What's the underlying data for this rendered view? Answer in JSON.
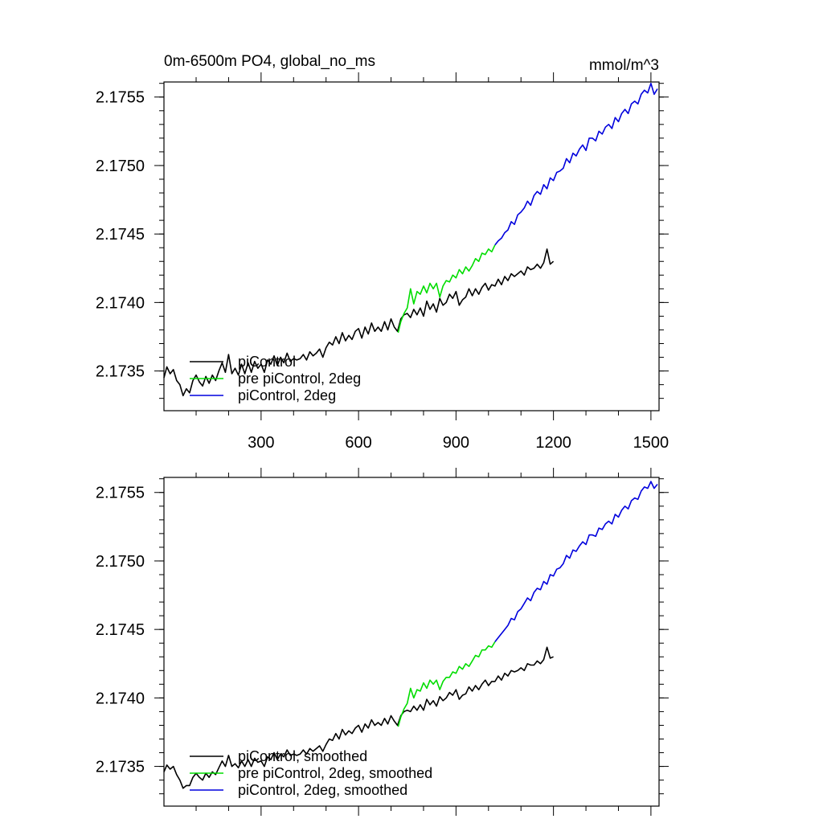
{
  "chart_data": [
    {
      "type": "line",
      "title": "0m-6500m PO4, global_no_ms",
      "units": "mmol/m^3",
      "xlabel": "",
      "ylabel": "",
      "xlim": [
        1,
        1525
      ],
      "ylim": [
        2.17321,
        2.17561
      ],
      "xticks": [
        300,
        600,
        900,
        1200,
        1500
      ],
      "yticks": [
        2.1735,
        2.174,
        2.1745,
        2.175,
        2.1755
      ],
      "xtick_labels": [
        "300",
        "600",
        "900",
        "1200",
        "1500"
      ],
      "ytick_labels": [
        "2.1735",
        "2.1740",
        "2.1745",
        "2.1750",
        "2.1755"
      ],
      "legend_position": "bottom-left",
      "series": [
        {
          "name": "piControl",
          "color": "#000000",
          "x": [
            1,
            10,
            20,
            30,
            40,
            50,
            60,
            70,
            80,
            90,
            100,
            110,
            120,
            130,
            140,
            150,
            160,
            170,
            180,
            190,
            200,
            210,
            220,
            230,
            240,
            250,
            260,
            270,
            280,
            290,
            300,
            310,
            320,
            330,
            340,
            350,
            360,
            370,
            380,
            390,
            400,
            410,
            420,
            430,
            440,
            450,
            460,
            470,
            480,
            490,
            500,
            510,
            520,
            530,
            540,
            550,
            560,
            570,
            580,
            590,
            600,
            610,
            620,
            630,
            640,
            650,
            660,
            670,
            680,
            690,
            700,
            710,
            720,
            730,
            740,
            750,
            760,
            770,
            780,
            790,
            800,
            810,
            820,
            830,
            840,
            850,
            860,
            870,
            880,
            890,
            900,
            910,
            920,
            930,
            940,
            950,
            960,
            970,
            980,
            990,
            1000,
            1010,
            1020,
            1030,
            1040,
            1050,
            1060,
            1070,
            1080,
            1090,
            1100,
            1110,
            1120,
            1130,
            1140,
            1150,
            1160,
            1170,
            1180,
            1190,
            1200
          ],
          "y": [
            2.17345,
            2.17353,
            2.17348,
            2.17351,
            2.17343,
            2.1734,
            2.17332,
            2.17337,
            2.17334,
            2.17343,
            2.17347,
            2.17342,
            2.17339,
            2.17346,
            2.17341,
            2.17347,
            2.17343,
            2.1735,
            2.17356,
            2.17349,
            2.17362,
            2.17348,
            2.17352,
            2.17347,
            2.17355,
            2.17348,
            2.17356,
            2.17349,
            2.17357,
            2.17352,
            2.17355,
            2.17349,
            2.17358,
            2.17355,
            2.17361,
            2.17354,
            2.1736,
            2.17356,
            2.17363,
            2.17357,
            2.17359,
            2.17358,
            2.17359,
            2.17362,
            2.17358,
            2.17364,
            2.17361,
            2.17363,
            2.17366,
            2.1736,
            2.17367,
            2.17371,
            2.17369,
            2.17375,
            2.1737,
            2.17378,
            2.17372,
            2.17376,
            2.17373,
            2.17379,
            2.17381,
            2.17374,
            2.17382,
            2.17377,
            2.17385,
            2.17379,
            2.17382,
            2.17379,
            2.17386,
            2.1738,
            2.17388,
            2.17382,
            2.17379,
            2.17388,
            2.17391,
            2.17392,
            2.17389,
            2.17395,
            2.17391,
            2.17396,
            2.1739,
            2.17401,
            2.17395,
            2.17399,
            2.17393,
            2.17403,
            2.17398,
            2.174,
            2.17406,
            2.17403,
            2.17408,
            2.17398,
            2.17402,
            2.17404,
            2.1741,
            2.17405,
            2.1741,
            2.17406,
            2.17411,
            2.17414,
            2.17409,
            2.17413,
            2.17412,
            2.17417,
            2.17413,
            2.17419,
            2.17416,
            2.17421,
            2.17419,
            2.17421,
            2.17423,
            2.1742,
            2.17426,
            2.17424,
            2.17425,
            2.17428,
            2.17425,
            2.17429,
            2.17439,
            2.17428,
            2.1743
          ]
        },
        {
          "name": "pre piControl, 2deg",
          "color": "#00dd00",
          "x": [
            722,
            730,
            740,
            750,
            760,
            770,
            780,
            790,
            800,
            810,
            820,
            830,
            840,
            850,
            860,
            870,
            880,
            890,
            900,
            910,
            920,
            930,
            940,
            950,
            960,
            970,
            980,
            990,
            1000,
            1010,
            1020
          ],
          "y": [
            2.17378,
            2.17386,
            2.17392,
            2.17396,
            2.1741,
            2.17399,
            2.17408,
            2.17406,
            2.17412,
            2.17407,
            2.17414,
            2.1741,
            2.17414,
            2.17404,
            2.17412,
            2.17416,
            2.17415,
            2.1742,
            2.17418,
            2.17424,
            2.17421,
            2.17426,
            2.17423,
            2.17427,
            2.17432,
            2.1743,
            2.17436,
            2.17435,
            2.17439,
            2.17437,
            2.17442
          ]
        },
        {
          "name": "piControl, 2deg",
          "color": "#0000dd",
          "x": [
            1020,
            1030,
            1040,
            1050,
            1060,
            1070,
            1080,
            1090,
            1100,
            1110,
            1120,
            1130,
            1140,
            1150,
            1160,
            1170,
            1180,
            1190,
            1200,
            1210,
            1220,
            1230,
            1240,
            1250,
            1260,
            1270,
            1280,
            1290,
            1300,
            1310,
            1320,
            1330,
            1340,
            1350,
            1360,
            1370,
            1380,
            1390,
            1400,
            1410,
            1420,
            1430,
            1440,
            1450,
            1460,
            1470,
            1480,
            1490,
            1500,
            1510,
            1520
          ],
          "y": [
            2.17442,
            2.17445,
            2.17447,
            2.17451,
            2.17453,
            2.17459,
            2.17457,
            2.17464,
            2.17466,
            2.17469,
            2.17474,
            2.17471,
            2.17478,
            2.17481,
            2.17479,
            2.17486,
            2.17483,
            2.17491,
            2.17489,
            2.17495,
            2.17496,
            2.17498,
            2.17505,
            2.17502,
            2.17509,
            2.17507,
            2.17512,
            2.17515,
            2.17511,
            2.1752,
            2.1752,
            2.17518,
            2.17525,
            2.17523,
            2.17528,
            2.1753,
            2.17527,
            2.17535,
            2.17532,
            2.17538,
            2.17541,
            2.17538,
            2.17545,
            2.17547,
            2.17545,
            2.17552,
            2.17555,
            2.17553,
            2.1756,
            2.17552,
            2.17556
          ]
        }
      ]
    },
    {
      "type": "line",
      "title": "",
      "units": "",
      "xlabel": "",
      "ylabel": "",
      "xlim": [
        1,
        1525
      ],
      "ylim": [
        2.17321,
        2.17561
      ],
      "xticks": [
        300,
        600,
        900,
        1200,
        1500
      ],
      "yticks": [
        2.1735,
        2.174,
        2.1745,
        2.175,
        2.1755
      ],
      "xtick_labels": [],
      "ytick_labels": [
        "2.1735",
        "2.1740",
        "2.1745",
        "2.1750",
        "2.1755"
      ],
      "legend_position": "bottom-left",
      "series": [
        {
          "name": "piControl, smoothed",
          "color": "#000000",
          "x": [
            1,
            10,
            20,
            30,
            40,
            50,
            60,
            70,
            80,
            90,
            100,
            110,
            120,
            130,
            140,
            150,
            160,
            170,
            180,
            190,
            200,
            210,
            220,
            230,
            240,
            250,
            260,
            270,
            280,
            290,
            300,
            310,
            320,
            330,
            340,
            350,
            360,
            370,
            380,
            390,
            400,
            410,
            420,
            430,
            440,
            450,
            460,
            470,
            480,
            490,
            500,
            510,
            520,
            530,
            540,
            550,
            560,
            570,
            580,
            590,
            600,
            610,
            620,
            630,
            640,
            650,
            660,
            670,
            680,
            690,
            700,
            710,
            720,
            730,
            740,
            750,
            760,
            770,
            780,
            790,
            800,
            810,
            820,
            830,
            840,
            850,
            860,
            870,
            880,
            890,
            900,
            910,
            920,
            930,
            940,
            950,
            960,
            970,
            980,
            990,
            1000,
            1010,
            1020,
            1030,
            1040,
            1050,
            1060,
            1070,
            1080,
            1090,
            1100,
            1110,
            1120,
            1130,
            1140,
            1150,
            1160,
            1170,
            1180,
            1190,
            1200
          ],
          "y": [
            2.17346,
            2.17351,
            2.17348,
            2.1735,
            2.17344,
            2.1734,
            2.17334,
            2.17336,
            2.17336,
            2.17342,
            2.17345,
            2.17342,
            2.1734,
            2.17345,
            2.17342,
            2.17346,
            2.17344,
            2.17349,
            2.17354,
            2.1735,
            2.17358,
            2.1735,
            2.17352,
            2.17349,
            2.17354,
            2.1735,
            2.17355,
            2.1735,
            2.17356,
            2.17353,
            2.17354,
            2.1735,
            2.17357,
            2.17355,
            2.1736,
            2.17355,
            2.17359,
            2.17357,
            2.17362,
            2.17358,
            2.17359,
            2.17358,
            2.17359,
            2.17362,
            2.17359,
            2.17363,
            2.17361,
            2.17363,
            2.17365,
            2.17361,
            2.17366,
            2.1737,
            2.17369,
            2.17374,
            2.1737,
            2.17377,
            2.17373,
            2.17376,
            2.17374,
            2.17378,
            2.1738,
            2.17375,
            2.17381,
            2.17378,
            2.17384,
            2.1738,
            2.17382,
            2.1738,
            2.17385,
            2.17381,
            2.17387,
            2.17383,
            2.1738,
            2.17387,
            2.1739,
            2.17391,
            2.1739,
            2.17394,
            2.17391,
            2.17395,
            2.17391,
            2.17399,
            2.17395,
            2.17398,
            2.17394,
            2.17401,
            2.17398,
            2.174,
            2.17404,
            2.17402,
            2.17406,
            2.17399,
            2.17402,
            2.17403,
            2.17408,
            2.17405,
            2.17409,
            2.17406,
            2.1741,
            2.17413,
            2.17409,
            2.17412,
            2.17412,
            2.17416,
            2.17413,
            2.17418,
            2.17416,
            2.1742,
            2.17419,
            2.1742,
            2.17422,
            2.1742,
            2.17425,
            2.17424,
            2.17424,
            2.17427,
            2.17425,
            2.17428,
            2.17437,
            2.17429,
            2.1743
          ]
        },
        {
          "name": "pre piControl, 2deg, smoothed",
          "color": "#00dd00",
          "x": [
            722,
            730,
            740,
            750,
            760,
            770,
            780,
            790,
            800,
            810,
            820,
            830,
            840,
            850,
            860,
            870,
            880,
            890,
            900,
            910,
            920,
            930,
            940,
            950,
            960,
            970,
            980,
            990,
            1000,
            1010,
            1020
          ],
          "y": [
            2.17379,
            2.17386,
            2.17392,
            2.17396,
            2.17407,
            2.174,
            2.17406,
            2.17405,
            2.17411,
            2.17407,
            2.17413,
            2.1741,
            2.17413,
            2.17406,
            2.17412,
            2.17415,
            2.17415,
            2.17419,
            2.17418,
            2.17423,
            2.17421,
            2.17425,
            2.17423,
            2.17427,
            2.17431,
            2.1743,
            2.17435,
            2.17435,
            2.17438,
            2.17437,
            2.17441
          ]
        },
        {
          "name": "piControl, 2deg, smoothed",
          "color": "#0000dd",
          "x": [
            1020,
            1030,
            1040,
            1050,
            1060,
            1070,
            1080,
            1090,
            1100,
            1110,
            1120,
            1130,
            1140,
            1150,
            1160,
            1170,
            1180,
            1190,
            1200,
            1210,
            1220,
            1230,
            1240,
            1250,
            1260,
            1270,
            1280,
            1290,
            1300,
            1310,
            1320,
            1330,
            1340,
            1350,
            1360,
            1370,
            1380,
            1390,
            1400,
            1410,
            1420,
            1430,
            1440,
            1450,
            1460,
            1470,
            1480,
            1490,
            1500,
            1510,
            1520
          ],
          "y": [
            2.17441,
            2.17444,
            2.17447,
            2.1745,
            2.17453,
            2.17458,
            2.17457,
            2.17463,
            2.17465,
            2.17469,
            2.17473,
            2.17471,
            2.17477,
            2.1748,
            2.17479,
            2.17485,
            2.17483,
            2.1749,
            2.17489,
            2.17494,
            2.17495,
            2.17498,
            2.17504,
            2.17502,
            2.17508,
            2.17507,
            2.17511,
            2.17514,
            2.17512,
            2.17519,
            2.17519,
            2.17518,
            2.17524,
            2.17523,
            2.17527,
            2.17529,
            2.17527,
            2.17534,
            2.17532,
            2.17537,
            2.1754,
            2.17538,
            2.17544,
            2.17546,
            2.17545,
            2.17551,
            2.17554,
            2.17553,
            2.17558,
            2.17553,
            2.17556
          ]
        }
      ]
    }
  ]
}
